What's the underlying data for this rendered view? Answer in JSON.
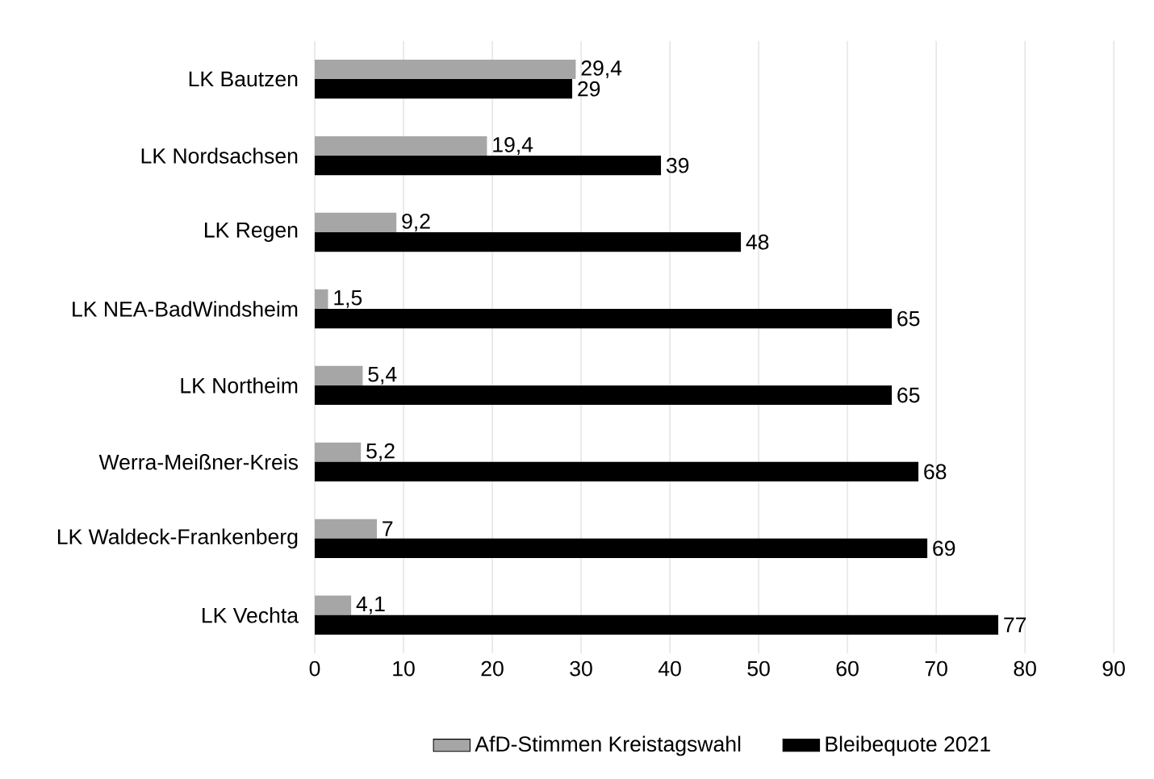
{
  "chart_data": {
    "type": "bar",
    "orientation": "horizontal",
    "categories": [
      "LK Bautzen",
      "LK Nordsachsen",
      "LK Regen",
      "LK NEA-BadWindsheim",
      "LK Northeim",
      "Werra-Meißner-Kreis",
      "LK Waldeck-Frankenberg",
      "LK Vechta"
    ],
    "series": [
      {
        "name": "AfD-Stimmen Kreistagswahl",
        "color": "#a6a6a6",
        "values": [
          29.4,
          19.4,
          9.2,
          1.5,
          5.4,
          5.2,
          7,
          4.1
        ],
        "value_labels": [
          "29,4",
          "19,4",
          "9,2",
          "1,5",
          "5,4",
          "5,2",
          "7",
          "4,1"
        ]
      },
      {
        "name": "Bleibequote 2021",
        "color": "#000000",
        "values": [
          29,
          39,
          48,
          65,
          65,
          68,
          69,
          77
        ],
        "value_labels": [
          "29",
          "39",
          "48",
          "65",
          "65",
          "68",
          "69",
          "77"
        ]
      }
    ],
    "xlim": [
      0,
      90
    ],
    "xticks": [
      0,
      10,
      20,
      30,
      40,
      50,
      60,
      70,
      80,
      90
    ],
    "grid": "x",
    "legend": "bottom"
  }
}
